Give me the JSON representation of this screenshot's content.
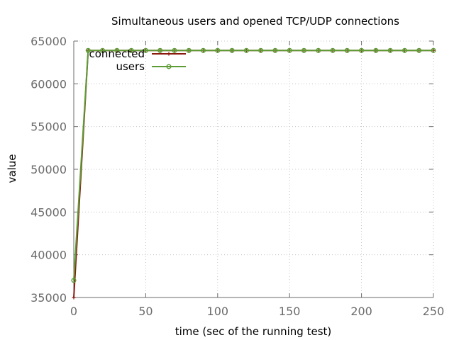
{
  "chart_data": {
    "type": "line",
    "title": "Simultaneous users and opened TCP/UDP connections",
    "xlabel": "time (sec of the running test)",
    "ylabel": "value",
    "xlim": [
      0,
      250
    ],
    "ylim": [
      35000,
      65000
    ],
    "xticks": [
      0,
      50,
      100,
      150,
      200,
      250
    ],
    "yticks": [
      35000,
      40000,
      45000,
      50000,
      55000,
      60000,
      65000
    ],
    "grid": true,
    "legend_position": "top-left",
    "x": [
      0,
      10,
      20,
      30,
      40,
      50,
      60,
      70,
      80,
      90,
      100,
      110,
      120,
      130,
      140,
      150,
      160,
      170,
      180,
      190,
      200,
      210,
      220,
      230,
      240,
      250
    ],
    "series": [
      {
        "name": "connected",
        "color": "#8b1a0e",
        "marker": "plus",
        "values": [
          35000,
          63900,
          63900,
          63900,
          63900,
          63900,
          63900,
          63900,
          63900,
          63900,
          63900,
          63900,
          63900,
          63900,
          63900,
          63900,
          63900,
          63900,
          63900,
          63900,
          63900,
          63900,
          63900,
          63900,
          63900,
          63900
        ]
      },
      {
        "name": "users",
        "color": "#5e9c36",
        "marker": "circle",
        "values": [
          37000,
          63900,
          63900,
          63900,
          63900,
          63900,
          63900,
          63900,
          63900,
          63900,
          63900,
          63900,
          63900,
          63900,
          63900,
          63900,
          63900,
          63900,
          63900,
          63900,
          63900,
          63900,
          63900,
          63900,
          63900,
          63900
        ]
      }
    ]
  }
}
